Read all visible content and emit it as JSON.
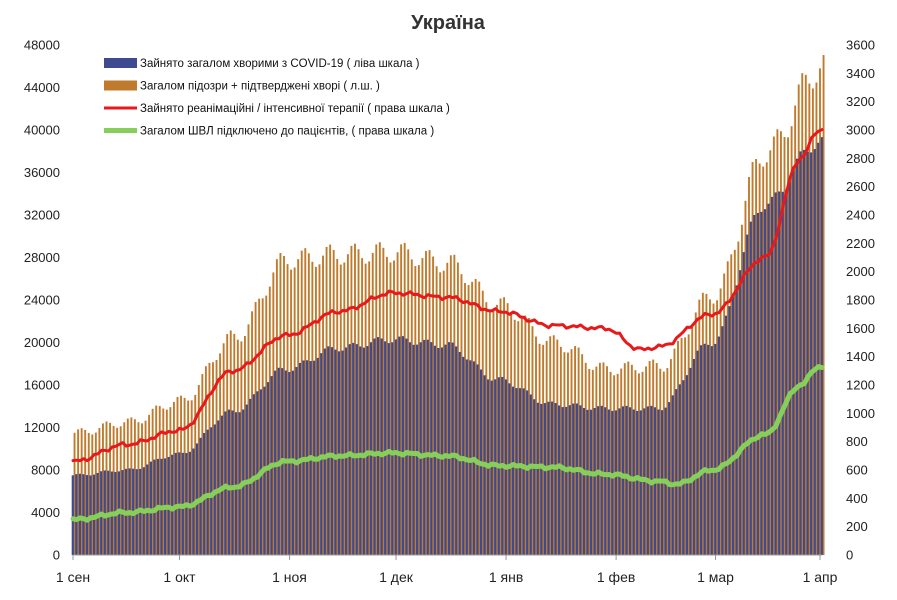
{
  "chart_data": {
    "type": "bar+line",
    "title": "Україна",
    "x_tick_labels": [
      "1 сен",
      "1 окт",
      "1 ноя",
      "1 дек",
      "1 янв",
      "1 фев",
      "1 мар",
      "1 апр"
    ],
    "left_axis": {
      "ticks": [
        0,
        4000,
        8000,
        12000,
        16000,
        20000,
        24000,
        28000,
        32000,
        36000,
        40000,
        44000,
        48000
      ],
      "ylim": [
        0,
        48000
      ]
    },
    "right_axis": {
      "ticks": [
        0,
        200,
        400,
        600,
        800,
        1000,
        1200,
        1400,
        1600,
        1800,
        2000,
        2200,
        2400,
        2600,
        2800,
        3000,
        3200,
        3400,
        3600
      ],
      "ylim": [
        0,
        3600
      ]
    },
    "legend": [
      {
        "label": "Зайнято загалом хворими з COVID-19 ( ліва шкала )",
        "color": "#3d4a8f",
        "kind": "bar"
      },
      {
        "label": "Загалом підозри + підтверджені хворі ( л.ш. )",
        "color": "#c07a2c",
        "kind": "bar"
      },
      {
        "label": "Зайнято реанімаційні / інтенсивної терапії ( права шкала )",
        "color": "#e8191b",
        "kind": "line"
      },
      {
        "label": "Загалом ШВЛ  підключено до пацієнтів, ( права шкала )",
        "color": "#86cf5a",
        "kind": "line"
      }
    ],
    "series_keypoints": {
      "note": "day index from 1 Sep 2020 (0) to ~31 Mar 2021 (211); values read from axes",
      "confirmed_occupied_left": [
        [
          0,
          7500
        ],
        [
          15,
          8000
        ],
        [
          30,
          9500
        ],
        [
          45,
          13500
        ],
        [
          60,
          17500
        ],
        [
          75,
          19500
        ],
        [
          90,
          20300
        ],
        [
          105,
          19800
        ],
        [
          120,
          16500
        ],
        [
          135,
          14200
        ],
        [
          150,
          13800
        ],
        [
          165,
          13800
        ],
        [
          180,
          20000
        ],
        [
          195,
          33000
        ],
        [
          210,
          38800
        ]
      ],
      "suspected_plus_confirmed_left": [
        [
          0,
          11500
        ],
        [
          15,
          12500
        ],
        [
          30,
          14500
        ],
        [
          45,
          20500
        ],
        [
          60,
          27800
        ],
        [
          75,
          28300
        ],
        [
          90,
          28500
        ],
        [
          105,
          27500
        ],
        [
          120,
          23500
        ],
        [
          135,
          20000
        ],
        [
          150,
          17500
        ],
        [
          165,
          17800
        ],
        [
          180,
          24500
        ],
        [
          195,
          38000
        ],
        [
          210,
          45800
        ]
      ],
      "icu_right": [
        [
          0,
          660
        ],
        [
          15,
          780
        ],
        [
          30,
          880
        ],
        [
          45,
          1300
        ],
        [
          60,
          1550
        ],
        [
          75,
          1720
        ],
        [
          90,
          1850
        ],
        [
          105,
          1820
        ],
        [
          120,
          1720
        ],
        [
          135,
          1620
        ],
        [
          150,
          1600
        ],
        [
          160,
          1450
        ],
        [
          165,
          1470
        ],
        [
          180,
          1700
        ],
        [
          195,
          2100
        ],
        [
          205,
          2800
        ],
        [
          210,
          3000
        ]
      ],
      "ventilators_right": [
        [
          0,
          250
        ],
        [
          15,
          300
        ],
        [
          30,
          340
        ],
        [
          45,
          480
        ],
        [
          60,
          660
        ],
        [
          75,
          700
        ],
        [
          90,
          720
        ],
        [
          105,
          700
        ],
        [
          120,
          630
        ],
        [
          135,
          620
        ],
        [
          150,
          570
        ],
        [
          165,
          520
        ],
        [
          170,
          500
        ],
        [
          180,
          600
        ],
        [
          195,
          850
        ],
        [
          205,
          1200
        ],
        [
          210,
          1330
        ]
      ]
    }
  }
}
